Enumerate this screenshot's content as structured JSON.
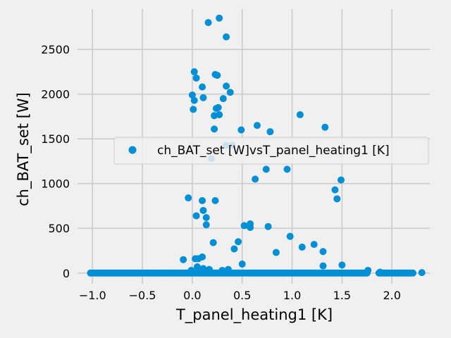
{
  "chart_data": {
    "type": "scatter",
    "xlabel": "T_panel_heating1 [K]",
    "ylabel": "ch_BAT_set [W]",
    "xlim": [
      -1.15,
      2.38
    ],
    "ylim": [
      -120,
      2950
    ],
    "x_ticks": [
      -1.0,
      -0.5,
      0.0,
      0.5,
      1.0,
      1.5,
      2.0
    ],
    "x_tick_labels": [
      "−1.0",
      "−0.5",
      "0.0",
      "0.5",
      "1.0",
      "1.5",
      "2.0"
    ],
    "y_ticks": [
      0,
      500,
      1000,
      1500,
      2000,
      2500
    ],
    "y_tick_labels": [
      "0",
      "500",
      "1000",
      "1500",
      "2000",
      "2500"
    ],
    "grid": true,
    "legend_position": "center-right",
    "series": [
      {
        "name": "ch_BAT_set [W]vsT_panel_heating1 [K]",
        "color": "#008fd5",
        "points": [
          [
            0.16,
            2800
          ],
          [
            0.27,
            2850
          ],
          [
            0.34,
            2640
          ],
          [
            0.02,
            2250
          ],
          [
            0.04,
            2180
          ],
          [
            0.23,
            2220
          ],
          [
            0.25,
            2210
          ],
          [
            0.0,
            1990
          ],
          [
            0.02,
            1930
          ],
          [
            0.1,
            2080
          ],
          [
            0.11,
            1960
          ],
          [
            0.34,
            2090
          ],
          [
            0.38,
            2020
          ],
          [
            0.31,
            1950
          ],
          [
            0.01,
            1830
          ],
          [
            0.24,
            1840
          ],
          [
            0.26,
            1850
          ],
          [
            0.22,
            1760
          ],
          [
            0.27,
            1770
          ],
          [
            0.22,
            1610
          ],
          [
            0.49,
            1600
          ],
          [
            0.65,
            1650
          ],
          [
            0.78,
            1580
          ],
          [
            1.08,
            1770
          ],
          [
            1.33,
            1630
          ],
          [
            0.34,
            1430
          ],
          [
            0.4,
            1430
          ],
          [
            0.19,
            1280
          ],
          [
            0.74,
            1160
          ],
          [
            0.63,
            1050
          ],
          [
            0.95,
            1160
          ],
          [
            1.43,
            930
          ],
          [
            1.45,
            830
          ],
          [
            1.49,
            1040
          ],
          [
            -0.04,
            840
          ],
          [
            0.1,
            810
          ],
          [
            0.23,
            810
          ],
          [
            0.11,
            700
          ],
          [
            0.04,
            640
          ],
          [
            0.14,
            620
          ],
          [
            0.14,
            540
          ],
          [
            0.52,
            530
          ],
          [
            0.58,
            550
          ],
          [
            0.58,
            510
          ],
          [
            0.76,
            520
          ],
          [
            0.21,
            340
          ],
          [
            0.46,
            350
          ],
          [
            0.42,
            270
          ],
          [
            0.98,
            410
          ],
          [
            0.84,
            230
          ],
          [
            1.1,
            290
          ],
          [
            1.22,
            320
          ],
          [
            1.31,
            240
          ],
          [
            -0.09,
            150
          ],
          [
            0.03,
            160
          ],
          [
            0.06,
            160
          ],
          [
            0.1,
            180
          ],
          [
            0.5,
            100
          ],
          [
            1.31,
            80
          ],
          [
            1.5,
            90
          ],
          [
            0.05,
            70
          ],
          [
            0.11,
            50
          ],
          [
            0.17,
            40
          ],
          [
            -0.01,
            30
          ],
          [
            0.3,
            30
          ],
          [
            0.36,
            40
          ],
          [
            1.76,
            30
          ],
          [
            1.88,
            10
          ],
          [
            2.3,
            5
          ]
        ],
        "dense_band": {
          "y": 0,
          "segments": [
            [
              -1.02,
              1.76
            ],
            [
              1.87,
              2.22
            ]
          ],
          "step": 0.017
        }
      }
    ]
  }
}
